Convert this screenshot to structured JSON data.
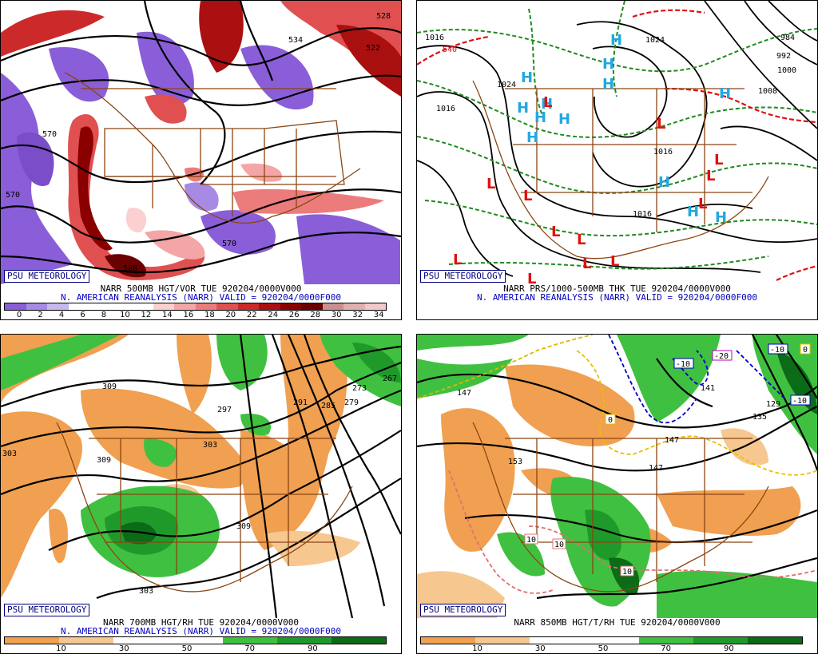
{
  "panels": {
    "top_left": {
      "badge": "PSU METEOROLOGY",
      "caption1": "NARR 500MB HGT/VOR TUE 920204/0000V000",
      "caption2": "N. AMERICAN REANALYSIS (NARR) VALID = 920204/0000F000",
      "scale": [
        "0",
        "2",
        "4",
        "6",
        "8",
        "10",
        "12",
        "14",
        "16",
        "18",
        "20",
        "22",
        "24",
        "26",
        "28",
        "30",
        "32",
        "34"
      ],
      "contour_labels": [
        "528",
        "534",
        "522",
        "570",
        "570",
        "570",
        "588"
      ]
    },
    "top_right": {
      "badge": "PSU METEOROLOGY",
      "caption1": "NARR PRS/1000-500MB THK TUE 920204/0000V000",
      "caption2": "N. AMERICAN REANALYSIS (NARR) VALID = 920204/0000F000",
      "contour_labels": [
        "1016",
        "540",
        "1024",
        "1016",
        "1024",
        "1016",
        "1016",
        "1008",
        "984",
        "992",
        "1000"
      ],
      "high_symbol": "H",
      "low_symbol": "L"
    },
    "bottom_left": {
      "badge": "PSU METEOROLOGY",
      "caption1": "NARR 700MB HGT/RH TUE 920204/0000V000",
      "caption2": "N. AMERICAN REANALYSIS (NARR) VALID = 920204/0000F000",
      "scale": [
        "10",
        "30",
        "50",
        "70",
        "90"
      ],
      "contour_labels": [
        "309",
        "303",
        "309",
        "297",
        "303",
        "291",
        "285",
        "279",
        "273",
        "267",
        "309",
        "303"
      ]
    },
    "bottom_right": {
      "badge": "PSU METEOROLOGY",
      "caption1": "NARR 850MB HGT/T/RH TUE 920204/0000V000",
      "scale": [
        "10",
        "30",
        "50",
        "70",
        "90"
      ],
      "contour_labels": [
        "147",
        "153",
        "147",
        "141",
        "147",
        "135",
        "129"
      ],
      "temp_labels": [
        "-10",
        "-20",
        "-10",
        "-10",
        "0",
        "10",
        "10",
        "10",
        "0"
      ]
    }
  },
  "colors": {
    "vor_scale": [
      "#8a5ed8",
      "#a68ae4",
      "#c8b8f0",
      "#ffffff",
      "#ffffff",
      "#ffffff",
      "#ffffff",
      "#fbd0d0",
      "#f4a6a6",
      "#ec7c7c",
      "#e05050",
      "#cc2a2a",
      "#aa1010",
      "#8a0000",
      "#6a0000",
      "#c89090",
      "#e0b0b0",
      "#f4c8c8"
    ],
    "rh_scale": [
      "#f0a050",
      "#f7c790",
      "#ffffff",
      "#ffffff",
      "#40c040",
      "#1f9a2a",
      "#0b6b16"
    ],
    "state_lines": "#8b4513"
  }
}
